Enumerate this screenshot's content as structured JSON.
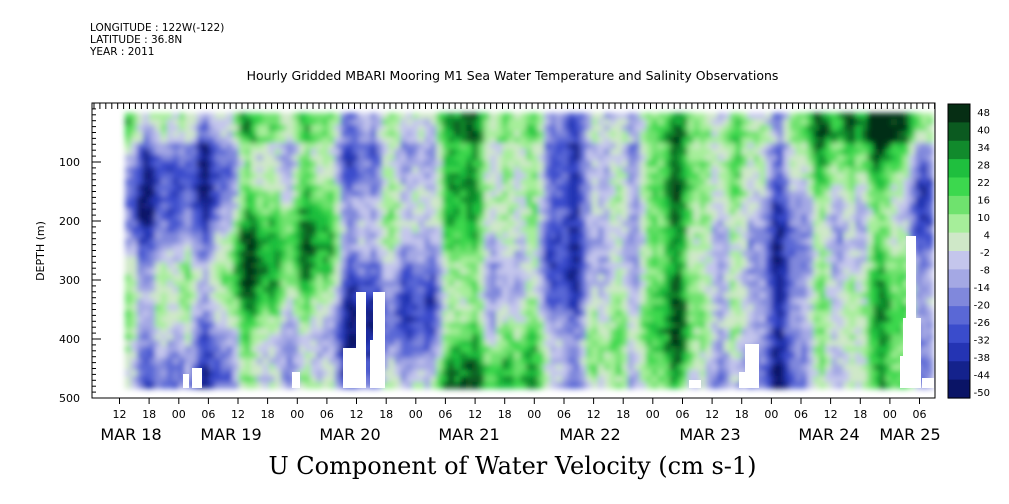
{
  "header": {
    "longitude": "LONGITUDE : 122W(-122)",
    "latitude": "LATITUDE : 36.8N",
    "year": "YEAR : 2011"
  },
  "chart_data": {
    "type": "heatmap",
    "title": "Hourly Gridded MBARI Mooring M1 Sea Water Temperature and Salinity Observations",
    "xlabel": "U Component of Water Velocity (cm s-1)",
    "ylabel": "DEPTH (m)",
    "ylim": [
      500,
      0
    ],
    "y_ticks": [
      100,
      200,
      300,
      400,
      500
    ],
    "x_hour_labels": [
      "12",
      "18",
      "00",
      "06",
      "12",
      "18",
      "00",
      "06",
      "12",
      "18",
      "00",
      "06",
      "12",
      "18",
      "00",
      "06",
      "12",
      "18",
      "00",
      "06",
      "12",
      "18",
      "00",
      "06",
      "12",
      "18",
      "00",
      "06"
    ],
    "x_date_labels": [
      "MAR 18",
      "MAR 19",
      "MAR 20",
      "MAR 21",
      "MAR 22",
      "MAR 23",
      "MAR 24",
      "MAR 25"
    ],
    "colorbar_levels": [
      48,
      40,
      34,
      28,
      22,
      16,
      10,
      4,
      -2,
      -8,
      -14,
      -20,
      -26,
      -32,
      -38,
      -44,
      -50
    ],
    "colorbar_colors": [
      "#062e14",
      "#0b5a20",
      "#118a2c",
      "#1fbf3e",
      "#3cd84e",
      "#6fe26e",
      "#a6ee9a",
      "#cfe8c8",
      "#c4c6ec",
      "#a4a8e4",
      "#8088dc",
      "#5a68d6",
      "#3a4ccc",
      "#2434b4",
      "#14228c",
      "#0a1466"
    ]
  }
}
